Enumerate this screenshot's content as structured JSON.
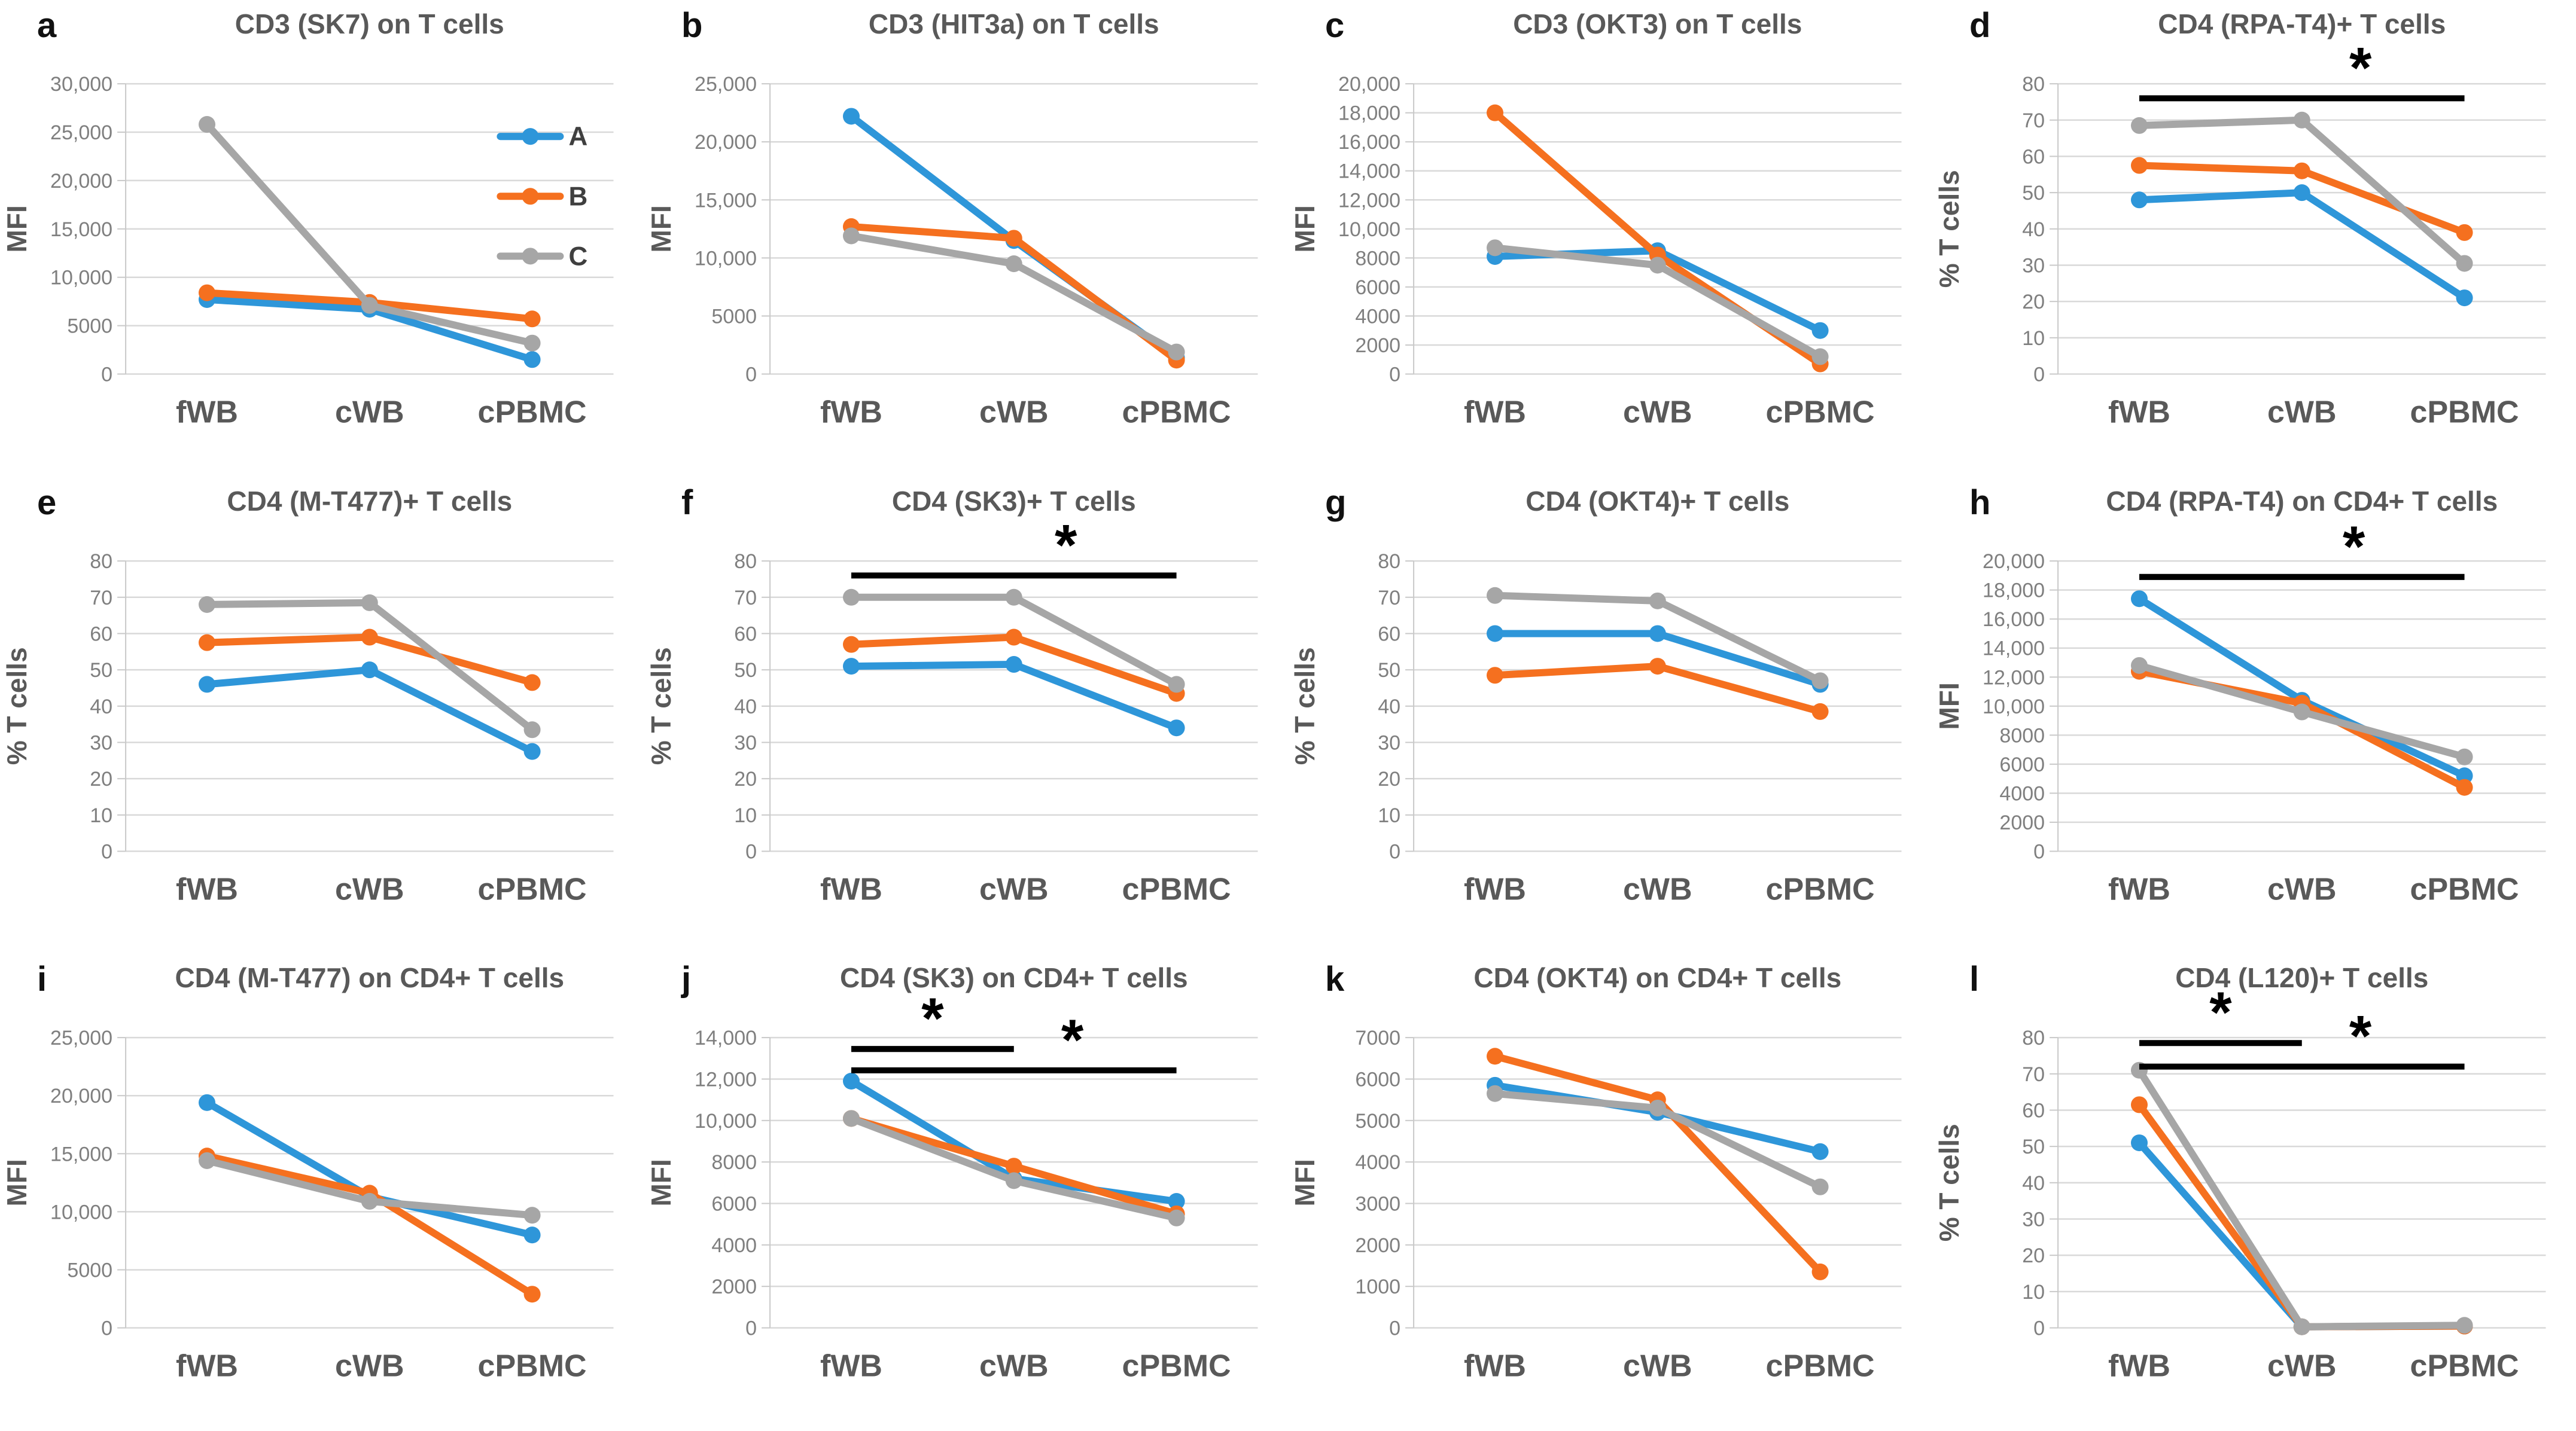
{
  "figure": {
    "background": "#ffffff",
    "series_colors": {
      "A": "#2E96D9",
      "B": "#F5701F",
      "C": "#A6A6A6"
    },
    "text_colors": {
      "title": "#595959",
      "letter": "#111111",
      "ytick": "#7F7F7F",
      "xtick": "#595959",
      "ylabel": "#595959",
      "legend": "#3F3F3F",
      "sig": "#000000"
    },
    "gridline_color": "#D9D9D9",
    "axis_color": "#C9C9C9",
    "star_symbol": "*",
    "legend": {
      "entries": [
        "A",
        "B",
        "C"
      ],
      "position": "top-right",
      "panel": "a"
    }
  },
  "chart_data": {
    "type": "line",
    "categories": [
      "fWB",
      "cWB",
      "cPBMC"
    ],
    "series_names": [
      "A",
      "B",
      "C"
    ],
    "panels": [
      {
        "letter": "a",
        "title": "CD3 (SK7) on T cells",
        "ylabel": "MFI",
        "ylim": [
          0,
          30000
        ],
        "ytick_labels": [
          "0",
          "5000",
          "10,000",
          "15,000",
          "20,000",
          "25,000",
          "30,000"
        ],
        "grid": true,
        "show_legend": true,
        "series": [
          {
            "name": "A",
            "values": [
              7700,
              6700,
              1500
            ]
          },
          {
            "name": "B",
            "values": [
              8400,
              7400,
              5700
            ]
          },
          {
            "name": "C",
            "values": [
              25800,
              7100,
              3200
            ]
          }
        ],
        "sig": []
      },
      {
        "letter": "b",
        "title": "CD3 (HIT3a) on T cells",
        "ylabel": "MFI",
        "ylim": [
          0,
          25000
        ],
        "ytick_labels": [
          "0",
          "5000",
          "10,000",
          "15,000",
          "20,000",
          "25,000"
        ],
        "grid": true,
        "show_legend": false,
        "series": [
          {
            "name": "A",
            "values": [
              22200,
              11500,
              1400
            ]
          },
          {
            "name": "B",
            "values": [
              12700,
              11700,
              1200
            ]
          },
          {
            "name": "C",
            "values": [
              11900,
              9500,
              1900
            ]
          }
        ],
        "sig": []
      },
      {
        "letter": "c",
        "title": "CD3 (OKT3) on T cells",
        "ylabel": "MFI",
        "ylim": [
          0,
          20000
        ],
        "ytick_labels": [
          "0",
          "2000",
          "4000",
          "6000",
          "8000",
          "10,000",
          "12,000",
          "14,000",
          "16,000",
          "18,000",
          "20,000"
        ],
        "grid": true,
        "show_legend": false,
        "series": [
          {
            "name": "A",
            "values": [
              8100,
              8500,
              3000
            ]
          },
          {
            "name": "B",
            "values": [
              18000,
              8200,
              700
            ]
          },
          {
            "name": "C",
            "values": [
              8700,
              7500,
              1200
            ]
          }
        ],
        "sig": []
      },
      {
        "letter": "d",
        "title": "CD4 (RPA-T4)+ T cells",
        "ylabel": "% T cells",
        "ylim": [
          0,
          80
        ],
        "ytick_labels": [
          "0",
          "10",
          "20",
          "30",
          "40",
          "50",
          "60",
          "70",
          "80"
        ],
        "grid": true,
        "show_legend": false,
        "series": [
          {
            "name": "A",
            "values": [
              48,
              50,
              21
            ]
          },
          {
            "name": "B",
            "values": [
              57.5,
              56,
              39
            ]
          },
          {
            "name": "C",
            "values": [
              68.5,
              70,
              30.5
            ]
          }
        ],
        "sig": [
          {
            "x1": 0,
            "x2": 2,
            "y": 76,
            "star_frac": 0.68,
            "star": "*"
          }
        ]
      },
      {
        "letter": "e",
        "title": "CD4 (M-T477)+ T cells",
        "ylabel": "% T cells",
        "ylim": [
          0,
          80
        ],
        "ytick_labels": [
          "0",
          "10",
          "20",
          "30",
          "40",
          "50",
          "60",
          "70",
          "80"
        ],
        "grid": true,
        "show_legend": false,
        "series": [
          {
            "name": "A",
            "values": [
              46,
              50,
              27.5
            ]
          },
          {
            "name": "B",
            "values": [
              57.5,
              59,
              46.5
            ]
          },
          {
            "name": "C",
            "values": [
              68,
              68.5,
              33.5
            ]
          }
        ],
        "sig": []
      },
      {
        "letter": "f",
        "title": "CD4 (SK3)+ T cells",
        "ylabel": "% T cells",
        "ylim": [
          0,
          80
        ],
        "ytick_labels": [
          "0",
          "10",
          "20",
          "30",
          "40",
          "50",
          "60",
          "70",
          "80"
        ],
        "grid": true,
        "show_legend": false,
        "series": [
          {
            "name": "A",
            "values": [
              51,
              51.5,
              34
            ]
          },
          {
            "name": "B",
            "values": [
              57,
              59,
              43.5
            ]
          },
          {
            "name": "C",
            "values": [
              70,
              70,
              46
            ]
          }
        ],
        "sig": [
          {
            "x1": 0,
            "x2": 2,
            "y": 76,
            "star_frac": 0.66,
            "star": "*"
          }
        ]
      },
      {
        "letter": "g",
        "title": "CD4 (OKT4)+ T cells",
        "ylabel": "% T cells",
        "ylim": [
          0,
          80
        ],
        "ytick_labels": [
          "0",
          "10",
          "20",
          "30",
          "40",
          "50",
          "60",
          "70",
          "80"
        ],
        "grid": true,
        "show_legend": false,
        "series": [
          {
            "name": "A",
            "values": [
              60,
              60,
              46
            ]
          },
          {
            "name": "B",
            "values": [
              48.5,
              51,
              38.5
            ]
          },
          {
            "name": "C",
            "values": [
              70.5,
              69,
              47
            ]
          }
        ],
        "sig": []
      },
      {
        "letter": "h",
        "title": "CD4 (RPA-T4) on CD4+ T cells",
        "ylabel": "MFI",
        "ylim": [
          0,
          20000
        ],
        "ytick_labels": [
          "0",
          "2000",
          "4000",
          "6000",
          "8000",
          "10,000",
          "12,000",
          "14,000",
          "16,000",
          "18,000",
          "20,000"
        ],
        "grid": true,
        "show_legend": false,
        "series": [
          {
            "name": "A",
            "values": [
              17400,
              10400,
              5200
            ]
          },
          {
            "name": "B",
            "values": [
              12400,
              10200,
              4400
            ]
          },
          {
            "name": "C",
            "values": [
              12800,
              9600,
              6500
            ]
          }
        ],
        "sig": [
          {
            "x1": 0,
            "x2": 2,
            "y": 18900,
            "star_frac": 0.66,
            "star": "*"
          }
        ]
      },
      {
        "letter": "i",
        "title": "CD4 (M-T477) on CD4+ T cells",
        "ylabel": "MFI",
        "ylim": [
          0,
          25000
        ],
        "ytick_labels": [
          "0",
          "5000",
          "10,000",
          "15,000",
          "20,000",
          "25,000"
        ],
        "grid": true,
        "show_legend": false,
        "series": [
          {
            "name": "A",
            "values": [
              19400,
              11300,
              8000
            ]
          },
          {
            "name": "B",
            "values": [
              14800,
              11600,
              2900
            ]
          },
          {
            "name": "C",
            "values": [
              14400,
              10900,
              9700
            ]
          }
        ],
        "sig": []
      },
      {
        "letter": "j",
        "title": "CD4 (SK3) on CD4+ T cells",
        "ylabel": "MFI",
        "ylim": [
          0,
          14000
        ],
        "ytick_labels": [
          "0",
          "2000",
          "4000",
          "6000",
          "8000",
          "10,000",
          "12,000",
          "14,000"
        ],
        "grid": true,
        "show_legend": false,
        "series": [
          {
            "name": "A",
            "values": [
              11900,
              7200,
              6100
            ]
          },
          {
            "name": "B",
            "values": [
              10100,
              7800,
              5500
            ]
          },
          {
            "name": "C",
            "values": [
              10100,
              7100,
              5300
            ]
          }
        ],
        "sig": [
          {
            "x1": 0,
            "x2": 1,
            "y": 13450,
            "star_frac": 0.5,
            "star": "*"
          },
          {
            "x1": 0,
            "x2": 2,
            "y": 12420,
            "star_frac": 0.68,
            "star": "*"
          }
        ]
      },
      {
        "letter": "k",
        "title": "CD4 (OKT4) on CD4+ T cells",
        "ylabel": "MFI",
        "ylim": [
          0,
          7000
        ],
        "ytick_labels": [
          "0",
          "1000",
          "2000",
          "3000",
          "4000",
          "5000",
          "6000",
          "7000"
        ],
        "grid": true,
        "show_legend": false,
        "series": [
          {
            "name": "A",
            "values": [
              5850,
              5200,
              4250
            ]
          },
          {
            "name": "B",
            "values": [
              6550,
              5500,
              1350
            ]
          },
          {
            "name": "C",
            "values": [
              5650,
              5300,
              3400
            ]
          }
        ],
        "sig": []
      },
      {
        "letter": "l",
        "title": "CD4 (L120)+ T cells",
        "ylabel": "% T cells",
        "ylim": [
          0,
          80
        ],
        "ytick_labels": [
          "0",
          "10",
          "20",
          "30",
          "40",
          "50",
          "60",
          "70",
          "80"
        ],
        "grid": true,
        "show_legend": false,
        "series": [
          {
            "name": "A",
            "values": [
              51,
              0.3,
              0.5
            ]
          },
          {
            "name": "B",
            "values": [
              61.5,
              0.3,
              0.5
            ]
          },
          {
            "name": "C",
            "values": [
              71,
              0.3,
              0.7
            ]
          }
        ],
        "sig": [
          {
            "x1": 0,
            "x2": 1,
            "y": 78.5,
            "star_frac": 0.5,
            "star": "*"
          },
          {
            "x1": 0,
            "x2": 2,
            "y": 72,
            "star_frac": 0.68,
            "star": "*"
          }
        ]
      }
    ]
  }
}
